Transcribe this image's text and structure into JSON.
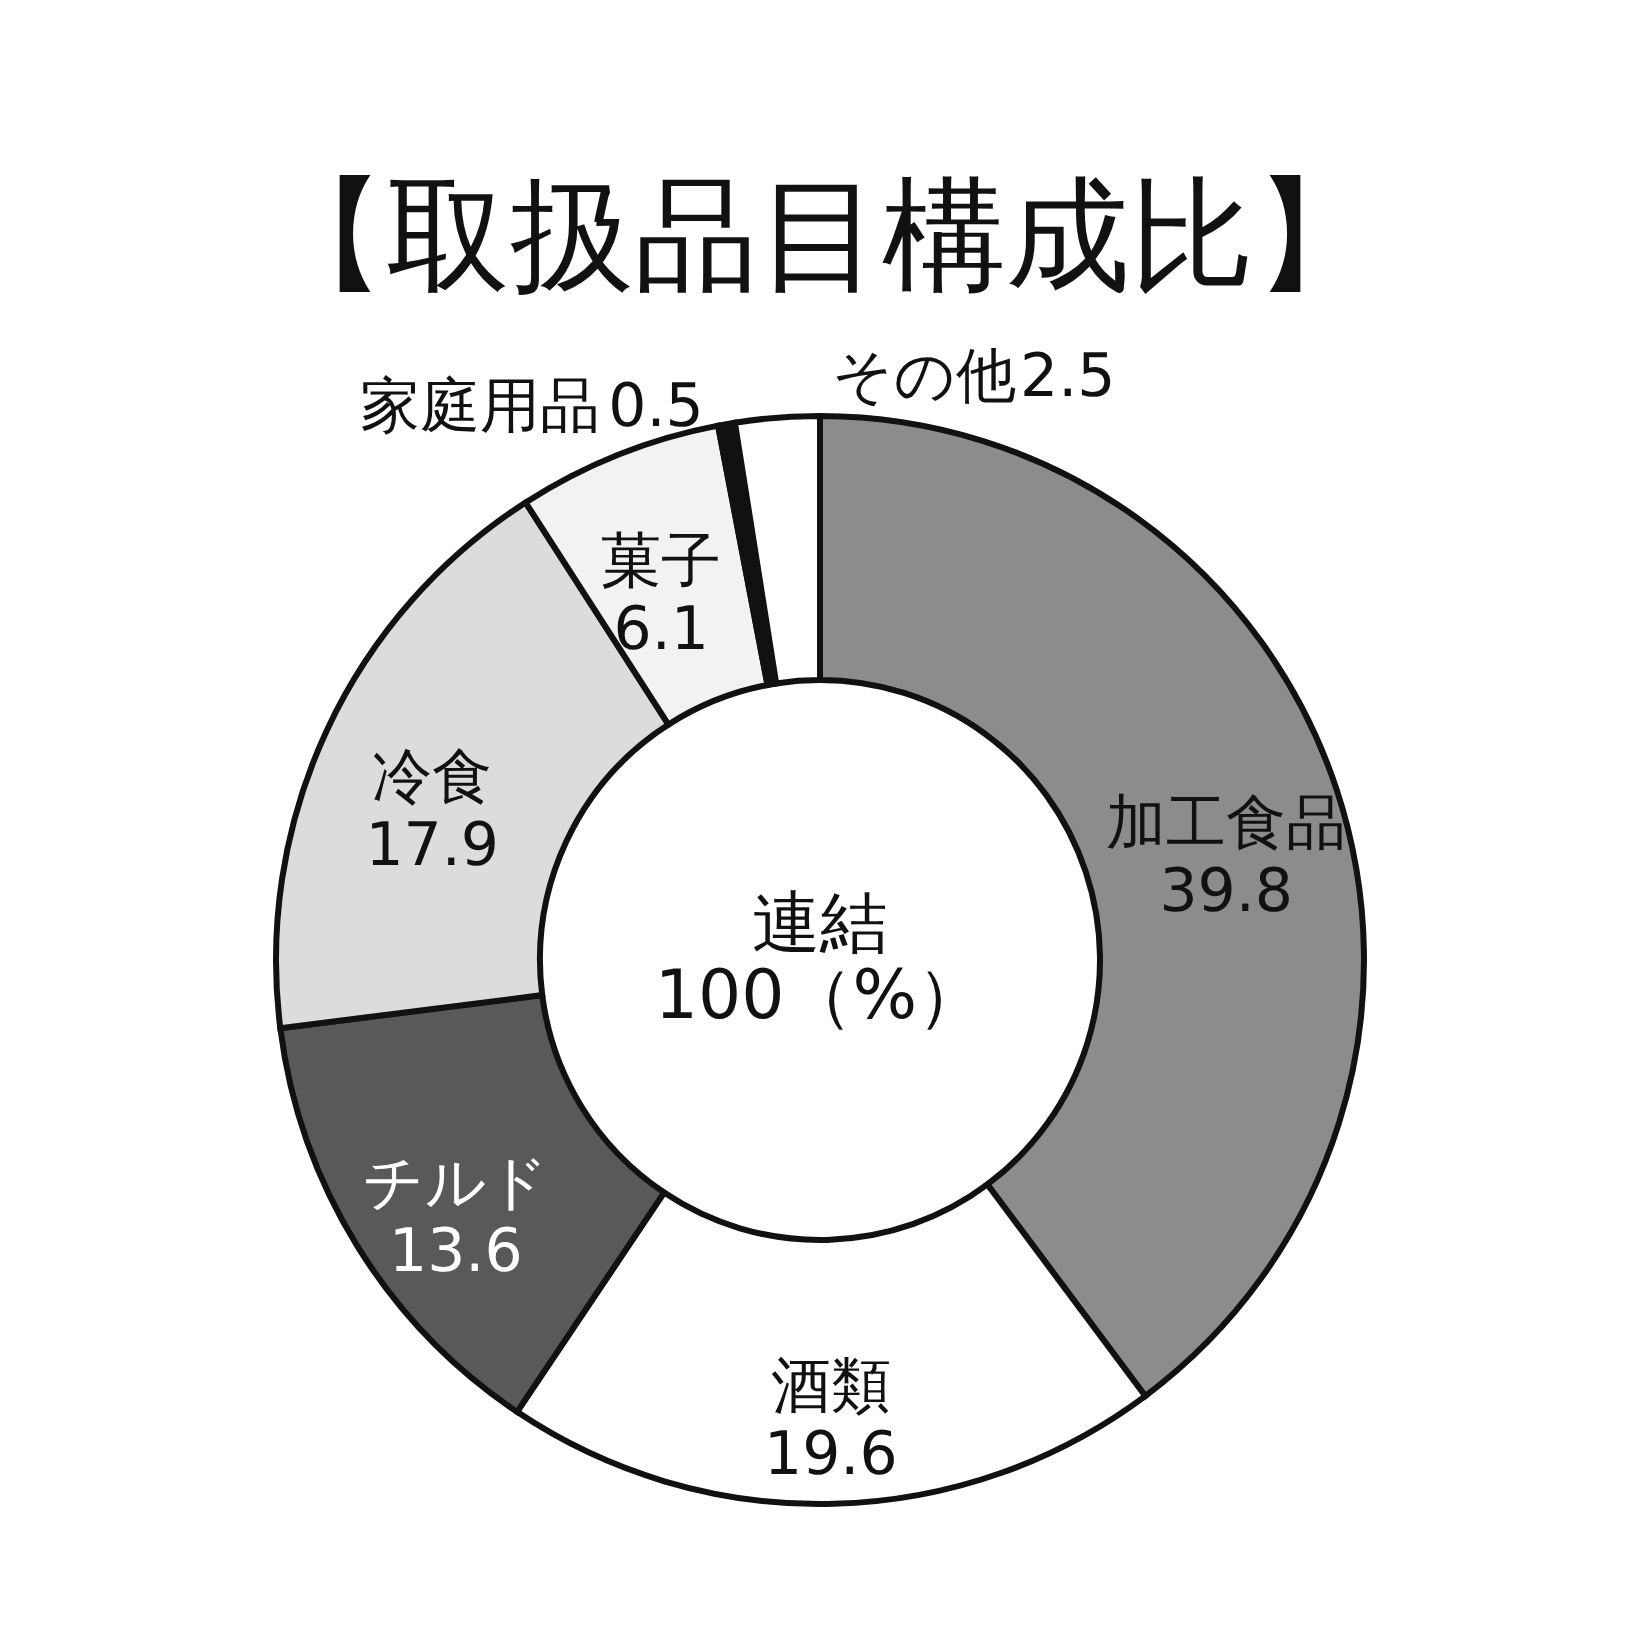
{
  "chart_data": {
    "type": "donut",
    "title": "【取扱品目構成比】",
    "categories": [
      "加工食品",
      "酒類",
      "チルド",
      "冷食",
      "菓子",
      "家庭用品",
      "その他"
    ],
    "values": [
      39.8,
      19.6,
      13.6,
      17.9,
      6.1,
      0.5,
      2.5
    ],
    "colors": [
      "#8c8c8c",
      "#ffffff",
      "#595959",
      "#dcdcdc",
      "#f2f2f2",
      "#111111",
      "#ffffff"
    ],
    "data_labels": true,
    "annotations": [
      "連結",
      "100（%）"
    ]
  }
}
